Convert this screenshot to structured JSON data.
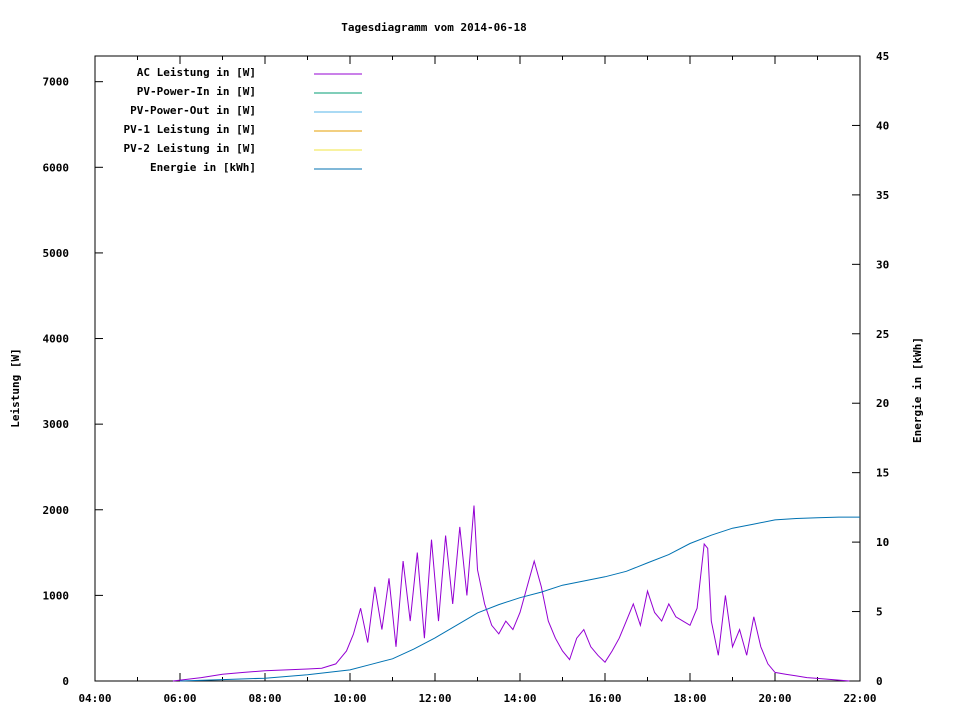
{
  "chart_data": {
    "type": "line",
    "title": "Tagesdiagramm vom 2014-06-18",
    "ylabel": "Leistung [W]",
    "y2label": "Energie in [kWh]",
    "xlim": [
      "04:00",
      "22:00"
    ],
    "ylim": [
      0,
      7300
    ],
    "y2lim": [
      0,
      45
    ],
    "x_ticks": [
      "04:00",
      "06:00",
      "08:00",
      "10:00",
      "12:00",
      "14:00",
      "16:00",
      "18:00",
      "20:00",
      "22:00"
    ],
    "y_ticks": [
      0,
      1000,
      2000,
      3000,
      4000,
      5000,
      6000,
      7000
    ],
    "y2_ticks": [
      0,
      5,
      10,
      15,
      20,
      25,
      30,
      35,
      40,
      45
    ],
    "grid": false,
    "legend_position": "top-left",
    "legend": [
      {
        "label": "AC Leistung in [W]",
        "color": "#9400d3"
      },
      {
        "label": "PV-Power-In in [W]",
        "color": "#009e73"
      },
      {
        "label": "PV-Power-Out in [W]",
        "color": "#56b4e9"
      },
      {
        "label": "PV-1 Leistung in [W]",
        "color": "#e69f00"
      },
      {
        "label": "PV-2 Leistung in [W]",
        "color": "#f0e442"
      },
      {
        "label": "Energie in [kWh]",
        "color": "#0072b2"
      }
    ],
    "series": [
      {
        "name": "AC Leistung in [W]",
        "axis": "left",
        "color": "#9400d3",
        "x": [
          "05:50",
          "06:30",
          "07:00",
          "07:30",
          "08:00",
          "08:30",
          "09:00",
          "09:20",
          "09:40",
          "09:55",
          "10:05",
          "10:15",
          "10:25",
          "10:35",
          "10:45",
          "10:55",
          "11:05",
          "11:15",
          "11:25",
          "11:35",
          "11:45",
          "11:55",
          "12:05",
          "12:15",
          "12:25",
          "12:35",
          "12:45",
          "12:55",
          "13:00",
          "13:10",
          "13:20",
          "13:30",
          "13:40",
          "13:50",
          "14:00",
          "14:10",
          "14:20",
          "14:30",
          "14:40",
          "14:50",
          "15:00",
          "15:10",
          "15:20",
          "15:30",
          "15:40",
          "15:50",
          "16:00",
          "16:10",
          "16:20",
          "16:30",
          "16:40",
          "16:50",
          "17:00",
          "17:10",
          "17:20",
          "17:30",
          "17:40",
          "17:50",
          "18:00",
          "18:10",
          "18:20",
          "18:25",
          "18:30",
          "18:40",
          "18:50",
          "19:00",
          "19:10",
          "19:20",
          "19:30",
          "19:40",
          "19:50",
          "20:00",
          "20:15",
          "20:30",
          "20:45",
          "21:00",
          "21:15",
          "21:30",
          "21:45"
        ],
        "values": [
          0,
          40,
          80,
          100,
          120,
          130,
          140,
          150,
          200,
          350,
          550,
          850,
          450,
          1100,
          600,
          1200,
          400,
          1400,
          700,
          1500,
          500,
          1650,
          700,
          1700,
          900,
          1800,
          1000,
          2050,
          1300,
          900,
          650,
          550,
          700,
          600,
          800,
          1100,
          1400,
          1100,
          700,
          500,
          350,
          250,
          500,
          600,
          400,
          300,
          220,
          350,
          500,
          700,
          900,
          650,
          1050,
          800,
          700,
          900,
          750,
          700,
          650,
          850,
          1600,
          1550,
          700,
          300,
          1000,
          400,
          600,
          300,
          750,
          400,
          200,
          100,
          80,
          60,
          40,
          30,
          20,
          10,
          0
        ]
      },
      {
        "name": "Energie in [kWh]",
        "axis": "right",
        "color": "#0072b2",
        "x": [
          "06:00",
          "07:00",
          "08:00",
          "09:00",
          "10:00",
          "10:30",
          "11:00",
          "11:30",
          "12:00",
          "12:30",
          "13:00",
          "13:30",
          "14:00",
          "14:30",
          "15:00",
          "15:30",
          "16:00",
          "16:30",
          "17:00",
          "17:30",
          "18:00",
          "18:30",
          "19:00",
          "19:30",
          "20:00",
          "20:30",
          "21:00",
          "21:30",
          "22:00"
        ],
        "values": [
          0,
          0.1,
          0.2,
          0.45,
          0.8,
          1.2,
          1.6,
          2.3,
          3.1,
          4.0,
          4.9,
          5.5,
          6.0,
          6.4,
          6.9,
          7.2,
          7.5,
          7.9,
          8.5,
          9.1,
          9.9,
          10.5,
          11.0,
          11.3,
          11.6,
          11.7,
          11.75,
          11.8,
          11.8
        ]
      }
    ]
  }
}
